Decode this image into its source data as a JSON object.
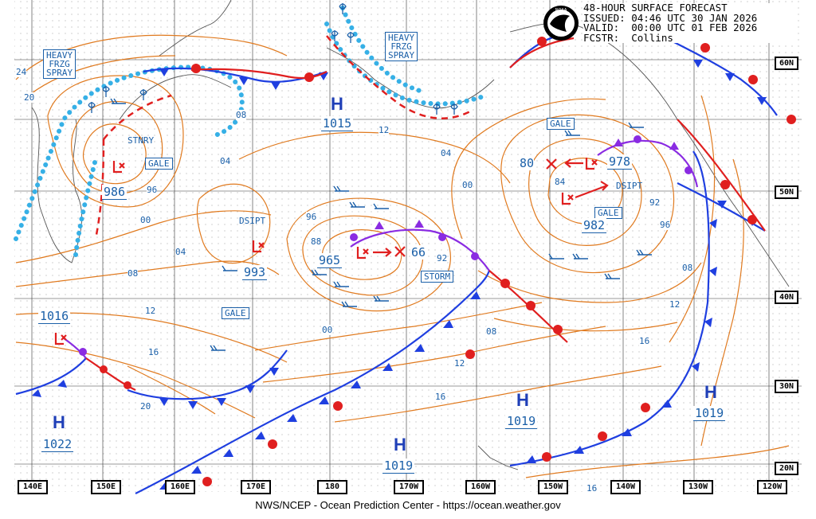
{
  "header": {
    "title": "48-HOUR SURFACE FORECAST",
    "issued": "ISSUED: 04:46 UTC 30 JAN 2026",
    "valid": "VALID:  00:00 UTC 01 FEB 2026",
    "forecaster": "FCSTR:  Collins"
  },
  "footer": {
    "text": "NWS/NCEP - Ocean Prediction Center - https://ocean.weather.gov"
  },
  "logo": {
    "icon": "noaa-logo",
    "text": "NOAA"
  },
  "longitude_labels": [
    "140E",
    "150E",
    "160E",
    "170E",
    "180",
    "170W",
    "160W",
    "150W",
    "140W",
    "130W",
    "120W"
  ],
  "latitude_labels": [
    "60N",
    "50N",
    "40N",
    "30N",
    "20N"
  ],
  "highs": [
    {
      "symbol": "H",
      "pressure": "1015"
    },
    {
      "symbol": "H",
      "pressure": "1022"
    },
    {
      "symbol": "H",
      "pressure": "1019"
    },
    {
      "symbol": "H",
      "pressure": "1019"
    },
    {
      "symbol": "H",
      "pressure": "1019"
    }
  ],
  "lows": [
    {
      "pressure": "986"
    },
    {
      "pressure": "993"
    },
    {
      "pressure": "965"
    },
    {
      "pressure": "978"
    },
    {
      "pressure": "982"
    },
    {
      "pressure": "1016"
    }
  ],
  "forecast_positions": [
    "80",
    "66"
  ],
  "labels": {
    "heavy_frzg_spray_1": [
      "HEAVY",
      "FRZG",
      "SPRAY"
    ],
    "heavy_frzg_spray_2": [
      "HEAVY",
      "FRZG",
      "SPRAY"
    ],
    "stnry": "STNRY",
    "dsipt_1": "DSIPT",
    "dsipt_2": "DSIPT",
    "gale_1": "GALE",
    "gale_2": "GALE",
    "gale_3": "GALE",
    "gale_4": "GALE",
    "storm": "STORM"
  },
  "isobar_labels": [
    "24",
    "20",
    "08",
    "04",
    "00",
    "96",
    "12",
    "04",
    "08",
    "12",
    "16",
    "20",
    "88",
    "96",
    "92",
    "00",
    "04",
    "08",
    "12",
    "16",
    "84",
    "92",
    "96",
    "08",
    "12",
    "16",
    "00",
    "16"
  ],
  "colors": {
    "isobar": "#e07a1f",
    "cold_front": "#1f3fe0",
    "warm_front": "#e01f1f",
    "occluded_front": "#8a2be2",
    "freezing_spray": "#36b0e6",
    "text_blue": "#1a5fa8",
    "grid": "#000000"
  }
}
